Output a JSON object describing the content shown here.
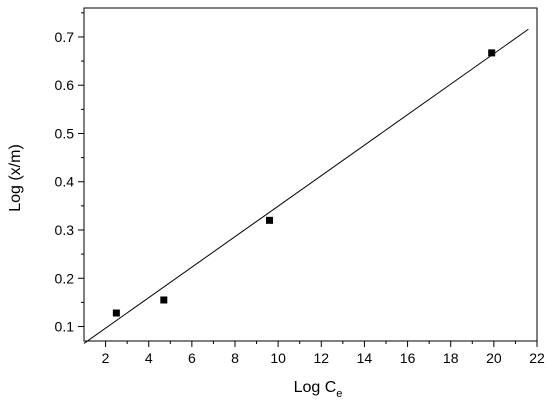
{
  "chart_data": {
    "type": "scatter",
    "xlabel": "Log C",
    "xlabel_sub": "e",
    "ylabel": "Log (x/m)",
    "xlim": [
      1,
      22
    ],
    "ylim": [
      0.07,
      0.76
    ],
    "x_ticks": [
      "2",
      "4",
      "6",
      "8",
      "10",
      "12",
      "14",
      "16",
      "18",
      "20",
      "22"
    ],
    "y_ticks": [
      "0.1",
      "0.2",
      "0.3",
      "0.4",
      "0.5",
      "0.6",
      "0.7"
    ],
    "grid": false,
    "points": [
      {
        "x": 2.5,
        "y": 0.128
      },
      {
        "x": 4.7,
        "y": 0.155
      },
      {
        "x": 9.6,
        "y": 0.32
      },
      {
        "x": 19.9,
        "y": 0.667
      }
    ],
    "fit_line": {
      "x": [
        1.0,
        21.6
      ],
      "y": [
        0.065,
        0.716
      ]
    },
    "colors": {
      "marker": "#000000",
      "line": "#000000",
      "axis": "#000000"
    }
  }
}
